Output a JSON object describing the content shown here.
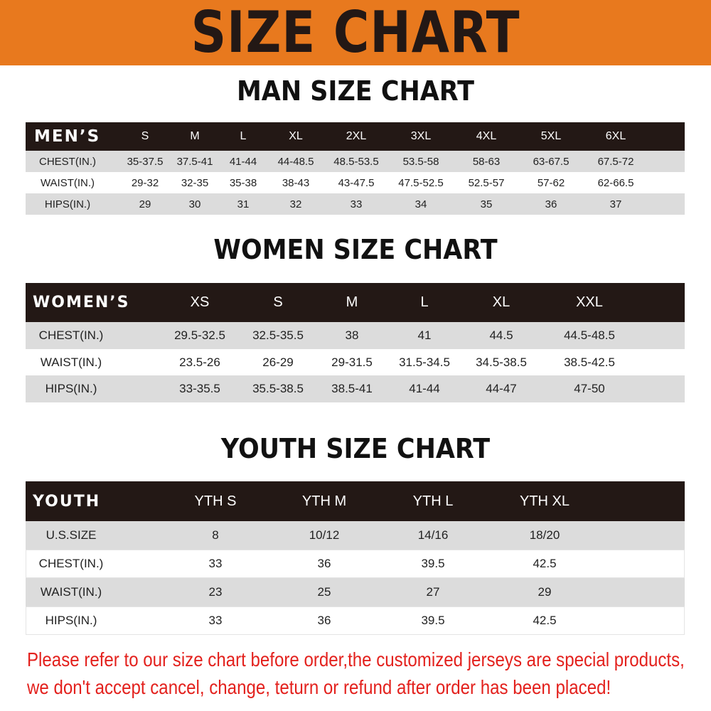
{
  "banner": {
    "title": "SIZE CHART",
    "color": "#e8791e"
  },
  "men": {
    "title": "MAN SIZE CHART",
    "header": [
      "MEN’S",
      "S",
      "M",
      "L",
      "XL",
      "2XL",
      "3XL",
      "4XL",
      "5XL",
      "6XL"
    ],
    "rows": [
      [
        "CHEST(IN.)",
        "35-37.5",
        "37.5-41",
        "41-44",
        "44-48.5",
        "48.5-53.5",
        "53.5-58",
        "58-63",
        "63-67.5",
        "67.5-72"
      ],
      [
        "WAIST(IN.)",
        "29-32",
        "32-35",
        "35-38",
        "38-43",
        "43-47.5",
        "47.5-52.5",
        "52.5-57",
        "57-62",
        "62-66.5"
      ],
      [
        "HIPS(IN.)",
        "29",
        "30",
        "31",
        "32",
        "33",
        "34",
        "35",
        "36",
        "37"
      ]
    ]
  },
  "women": {
    "title": "WOMEN SIZE CHART",
    "header": [
      "WOMEN’S",
      "XS",
      "S",
      "M",
      "L",
      "XL",
      "XXL"
    ],
    "rows": [
      [
        "CHEST(IN.)",
        "29.5-32.5",
        "32.5-35.5",
        "38",
        "41",
        "44.5",
        "44.5-48.5"
      ],
      [
        "WAIST(IN.)",
        "23.5-26",
        "26-29",
        "29-31.5",
        "31.5-34.5",
        "34.5-38.5",
        "38.5-42.5"
      ],
      [
        "HIPS(IN.)",
        "33-35.5",
        "35.5-38.5",
        "38.5-41",
        "41-44",
        "44-47",
        "47-50"
      ]
    ]
  },
  "youth": {
    "title": "YOUTH SIZE CHART",
    "header": [
      "YOUTH",
      "YTH S",
      "YTH M",
      "YTH L",
      "YTH XL"
    ],
    "rows": [
      [
        "U.S.SIZE",
        "8",
        "10/12",
        "14/16",
        "18/20"
      ],
      [
        "CHEST(IN.)",
        "33",
        "36",
        "39.5",
        "42.5"
      ],
      [
        "WAIST(IN.)",
        "23",
        "25",
        "27",
        "29"
      ],
      [
        "HIPS(IN.)",
        "33",
        "36",
        "39.5",
        "42.5"
      ]
    ]
  },
  "notice": {
    "line1": "Please refer to our size chart before order,the customized jerseys are special products,",
    "line2": "we don't accept cancel, change, teturn or refund after order has been placed!",
    "color": "#e3211d"
  }
}
